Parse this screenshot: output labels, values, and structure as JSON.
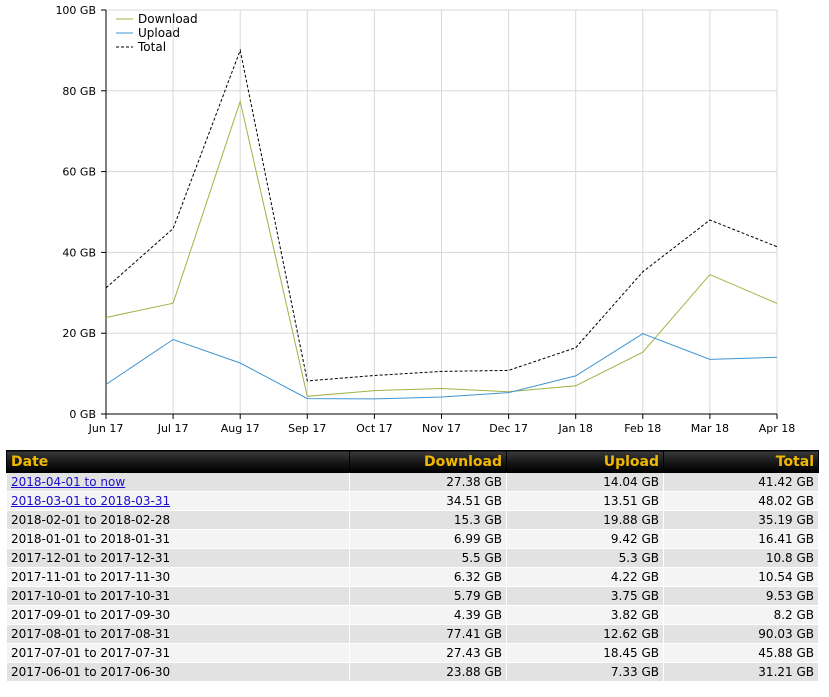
{
  "chart_data": {
    "type": "line",
    "title": "",
    "xlabel": "",
    "ylabel": "",
    "categories": [
      "Jun 17",
      "Jul 17",
      "Aug 17",
      "Sep 17",
      "Oct 17",
      "Nov 17",
      "Dec 17",
      "Jan 18",
      "Feb 18",
      "Mar 18",
      "Apr 18"
    ],
    "yticks": [
      "0 GB",
      "20 GB",
      "40 GB",
      "60 GB",
      "80 GB",
      "100 GB"
    ],
    "ylim": [
      0,
      100
    ],
    "grid": true,
    "legend_position": "top-left",
    "series": [
      {
        "name": "Download",
        "color": "#a3b144",
        "style": "solid",
        "values": [
          23.88,
          27.43,
          77.41,
          4.39,
          5.79,
          6.32,
          5.5,
          6.99,
          15.3,
          34.51,
          27.38
        ]
      },
      {
        "name": "Upload",
        "color": "#3f95d1",
        "style": "solid",
        "values": [
          7.33,
          18.45,
          12.62,
          3.82,
          3.75,
          4.22,
          5.3,
          9.42,
          19.88,
          13.51,
          14.04
        ]
      },
      {
        "name": "Total",
        "color": "#000000",
        "style": "dashed",
        "values": [
          31.21,
          45.88,
          90.03,
          8.2,
          9.53,
          10.54,
          10.8,
          16.41,
          35.19,
          48.02,
          41.42
        ]
      }
    ]
  },
  "table": {
    "headers": {
      "date": "Date",
      "download": "Download",
      "upload": "Upload",
      "total": "Total"
    },
    "rows": [
      {
        "date": "2018-04-01 to now",
        "download": "27.38 GB",
        "upload": "14.04 GB",
        "total": "41.42 GB",
        "link": true
      },
      {
        "date": "2018-03-01 to 2018-03-31",
        "download": "34.51 GB",
        "upload": "13.51 GB",
        "total": "48.02 GB",
        "link": true
      },
      {
        "date": "2018-02-01 to 2018-02-28",
        "download": "15.3 GB",
        "upload": "19.88 GB",
        "total": "35.19 GB",
        "link": false
      },
      {
        "date": "2018-01-01 to 2018-01-31",
        "download": "6.99 GB",
        "upload": "9.42 GB",
        "total": "16.41 GB",
        "link": false
      },
      {
        "date": "2017-12-01 to 2017-12-31",
        "download": "5.5 GB",
        "upload": "5.3 GB",
        "total": "10.8 GB",
        "link": false
      },
      {
        "date": "2017-11-01 to 2017-11-30",
        "download": "6.32 GB",
        "upload": "4.22 GB",
        "total": "10.54 GB",
        "link": false
      },
      {
        "date": "2017-10-01 to 2017-10-31",
        "download": "5.79 GB",
        "upload": "3.75 GB",
        "total": "9.53 GB",
        "link": false
      },
      {
        "date": "2017-09-01 to 2017-09-30",
        "download": "4.39 GB",
        "upload": "3.82 GB",
        "total": "8.2 GB",
        "link": false
      },
      {
        "date": "2017-08-01 to 2017-08-31",
        "download": "77.41 GB",
        "upload": "12.62 GB",
        "total": "90.03 GB",
        "link": false
      },
      {
        "date": "2017-07-01 to 2017-07-31",
        "download": "27.43 GB",
        "upload": "18.45 GB",
        "total": "45.88 GB",
        "link": false
      },
      {
        "date": "2017-06-01 to 2017-06-30",
        "download": "23.88 GB",
        "upload": "7.33 GB",
        "total": "31.21 GB",
        "link": false
      }
    ]
  }
}
